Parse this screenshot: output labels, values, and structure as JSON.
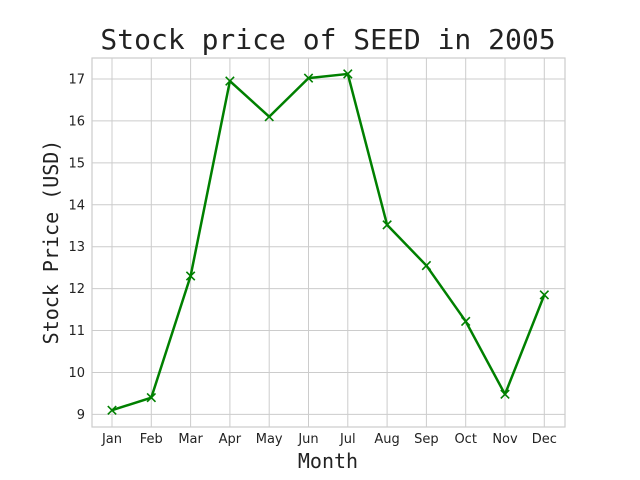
{
  "chart_data": {
    "type": "line",
    "title": "Stock price of SEED in 2005",
    "xlabel": "Month",
    "ylabel": "Stock Price (USD)",
    "categories": [
      "Jan",
      "Feb",
      "Mar",
      "Apr",
      "May",
      "Jun",
      "Jul",
      "Aug",
      "Sep",
      "Oct",
      "Nov",
      "Dec"
    ],
    "series": [
      {
        "values": [
          9.1,
          9.4,
          12.3,
          16.95,
          16.1,
          17.02,
          17.12,
          13.52,
          12.55,
          11.22,
          9.48,
          11.85
        ],
        "color": "#008000",
        "marker": "x"
      }
    ],
    "yticks": [
      9,
      10,
      11,
      12,
      13,
      14,
      15,
      16,
      17
    ],
    "ylim": [
      8.7,
      17.5
    ],
    "grid": true,
    "style": "whitegrid"
  }
}
